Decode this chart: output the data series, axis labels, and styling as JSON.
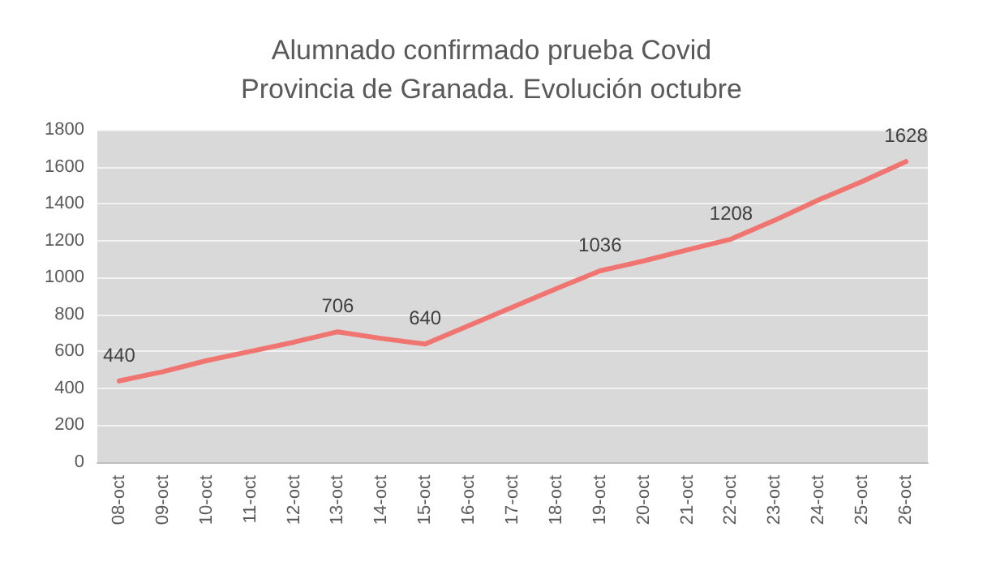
{
  "chart_data": {
    "type": "line",
    "title": "Alumnado confirmado prueba Covid\nProvincia de Granada. Evolución octubre",
    "categories": [
      "08-oct",
      "09-oct",
      "10-oct",
      "11-oct",
      "12-oct",
      "13-oct",
      "14-oct",
      "15-oct",
      "16-oct",
      "17-oct",
      "18-oct",
      "19-oct",
      "20-oct",
      "21-oct",
      "22-oct",
      "23-oct",
      "24-oct",
      "25-oct",
      "26-oct"
    ],
    "series": [
      {
        "color": "#f07470",
        "values": [
          440,
          490,
          550,
          600,
          650,
          706,
          670,
          640,
          740,
          840,
          940,
          1036,
          1090,
          1150,
          1208,
          1310,
          1420,
          1520,
          1628
        ],
        "value_labels": [
          "440",
          null,
          null,
          null,
          null,
          "706",
          null,
          "640",
          null,
          null,
          null,
          "1036",
          null,
          null,
          "1208",
          null,
          null,
          null,
          "1628"
        ]
      }
    ],
    "ylim": [
      0,
      1800
    ],
    "yticks": [
      0,
      200,
      400,
      600,
      800,
      1000,
      1200,
      1400,
      1600,
      1800
    ],
    "grid": "y",
    "marker": "none",
    "line_style": "solid"
  }
}
